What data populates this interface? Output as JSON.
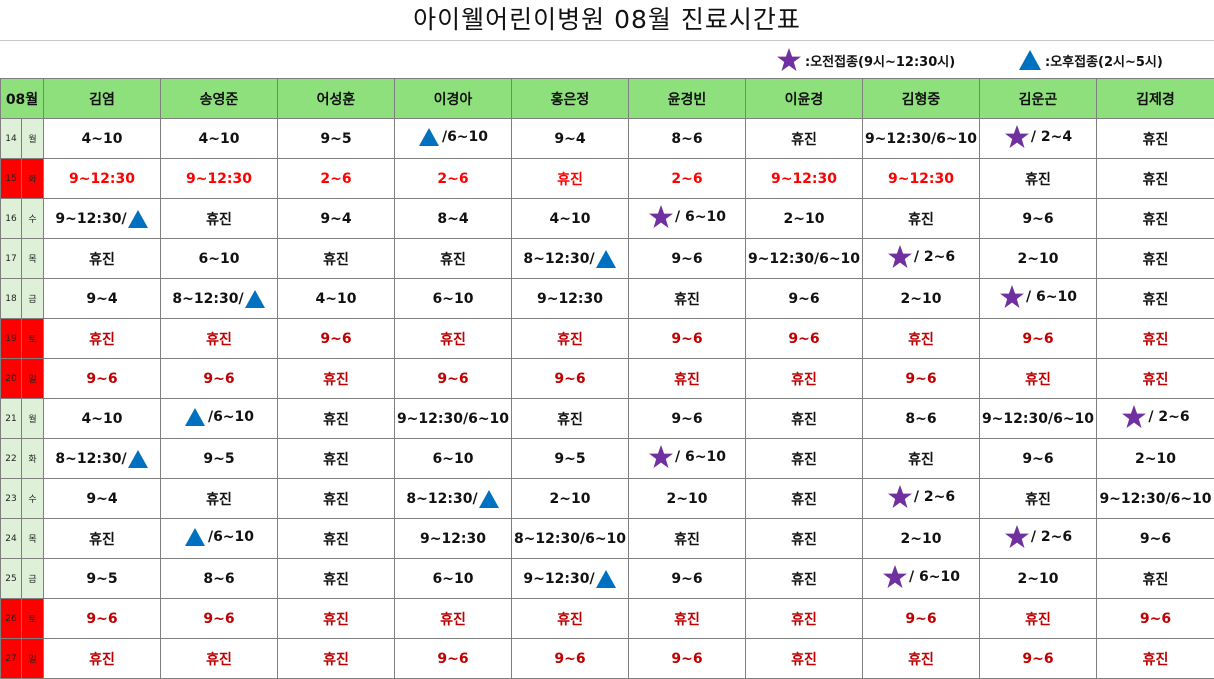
{
  "title": "아이웰어린이병원   08월   진료시간표",
  "legend": {
    "star_label": ":오전접종(9시~12:30시)",
    "triangle_label": ":오후접종(2시~5시)",
    "star_color": "#7030a0",
    "triangle_color": "#0070c0"
  },
  "header": {
    "month": "08월",
    "doctors": [
      "김염",
      "송영준",
      "어성훈",
      "이경아",
      "홍은정",
      "윤경빈",
      "이윤경",
      "김형중",
      "김운곤",
      "김제경"
    ]
  },
  "rows": [
    {
      "date": "14",
      "weekday": "월",
      "style": "normal",
      "cells": [
        {
          "text": "4~10"
        },
        {
          "text": "4~10"
        },
        {
          "text": "9~5"
        },
        {
          "text": "/6~10",
          "icon": "triangle",
          "pos": "before"
        },
        {
          "text": "9~4"
        },
        {
          "text": "8~6"
        },
        {
          "text": "휴진"
        },
        {
          "text": "9~12:30/6~10"
        },
        {
          "text": "/ 2~4",
          "icon": "star",
          "pos": "before"
        },
        {
          "text": "휴진"
        }
      ]
    },
    {
      "date": "15",
      "weekday": "화",
      "style": "red",
      "cells": [
        {
          "text": "9~12:30"
        },
        {
          "text": "9~12:30"
        },
        {
          "text": "2~6"
        },
        {
          "text": "2~6"
        },
        {
          "text": "휴진"
        },
        {
          "text": "2~6"
        },
        {
          "text": "9~12:30"
        },
        {
          "text": "9~12:30"
        },
        {
          "text": "휴진",
          "plain": true
        },
        {
          "text": "휴진",
          "plain": true
        }
      ]
    },
    {
      "date": "16",
      "weekday": "수",
      "style": "normal",
      "cells": [
        {
          "text": "9~12:30/",
          "icon": "triangle",
          "pos": "after"
        },
        {
          "text": "휴진"
        },
        {
          "text": "9~4"
        },
        {
          "text": "8~4"
        },
        {
          "text": "4~10"
        },
        {
          "text": "/ 6~10",
          "icon": "star",
          "pos": "before"
        },
        {
          "text": "2~10"
        },
        {
          "text": "휴진"
        },
        {
          "text": "9~6"
        },
        {
          "text": "휴진"
        }
      ]
    },
    {
      "date": "17",
      "weekday": "목",
      "style": "normal",
      "cells": [
        {
          "text": "휴진"
        },
        {
          "text": "6~10"
        },
        {
          "text": "휴진"
        },
        {
          "text": "휴진"
        },
        {
          "text": "8~12:30/",
          "icon": "triangle",
          "pos": "after"
        },
        {
          "text": "9~6"
        },
        {
          "text": "9~12:30/6~10"
        },
        {
          "text": "/ 2~6",
          "icon": "star",
          "pos": "before"
        },
        {
          "text": "2~10"
        },
        {
          "text": "휴진"
        }
      ]
    },
    {
      "date": "18",
      "weekday": "금",
      "style": "normal",
      "cells": [
        {
          "text": "9~4"
        },
        {
          "text": "8~12:30/",
          "icon": "triangle",
          "pos": "after"
        },
        {
          "text": "4~10"
        },
        {
          "text": "6~10"
        },
        {
          "text": "9~12:30"
        },
        {
          "text": "휴진"
        },
        {
          "text": "9~6"
        },
        {
          "text": "2~10"
        },
        {
          "text": "/ 6~10",
          "icon": "star",
          "pos": "before"
        },
        {
          "text": "휴진"
        }
      ]
    },
    {
      "date": "19",
      "weekday": "토",
      "style": "weekend",
      "cells": [
        {
          "text": "휴진"
        },
        {
          "text": "휴진"
        },
        {
          "text": "9~6"
        },
        {
          "text": "휴진"
        },
        {
          "text": "휴진"
        },
        {
          "text": "9~6"
        },
        {
          "text": "9~6"
        },
        {
          "text": "휴진"
        },
        {
          "text": "9~6"
        },
        {
          "text": "휴진"
        }
      ]
    },
    {
      "date": "20",
      "weekday": "일",
      "style": "weekend",
      "cells": [
        {
          "text": "9~6"
        },
        {
          "text": "9~6"
        },
        {
          "text": "휴진"
        },
        {
          "text": "9~6"
        },
        {
          "text": "9~6"
        },
        {
          "text": "휴진"
        },
        {
          "text": "휴진"
        },
        {
          "text": "9~6"
        },
        {
          "text": "휴진"
        },
        {
          "text": "휴진"
        }
      ]
    },
    {
      "date": "21",
      "weekday": "월",
      "style": "normal",
      "cells": [
        {
          "text": "4~10"
        },
        {
          "text": "/6~10",
          "icon": "triangle",
          "pos": "before"
        },
        {
          "text": "휴진"
        },
        {
          "text": "9~12:30/6~10"
        },
        {
          "text": "휴진"
        },
        {
          "text": "9~6"
        },
        {
          "text": "휴진"
        },
        {
          "text": "8~6"
        },
        {
          "text": "9~12:30/6~10"
        },
        {
          "text": "/ 2~6",
          "icon": "star",
          "pos": "before"
        }
      ]
    },
    {
      "date": "22",
      "weekday": "화",
      "style": "normal",
      "cells": [
        {
          "text": "8~12:30/",
          "icon": "triangle",
          "pos": "after"
        },
        {
          "text": "9~5"
        },
        {
          "text": "휴진"
        },
        {
          "text": "6~10"
        },
        {
          "text": "9~5"
        },
        {
          "text": "/ 6~10",
          "icon": "star",
          "pos": "before"
        },
        {
          "text": "휴진"
        },
        {
          "text": "휴진"
        },
        {
          "text": "9~6"
        },
        {
          "text": "2~10"
        }
      ]
    },
    {
      "date": "23",
      "weekday": "수",
      "style": "normal",
      "cells": [
        {
          "text": "9~4"
        },
        {
          "text": "휴진"
        },
        {
          "text": "휴진"
        },
        {
          "text": "8~12:30/",
          "icon": "triangle",
          "pos": "after"
        },
        {
          "text": "2~10"
        },
        {
          "text": "2~10"
        },
        {
          "text": "휴진"
        },
        {
          "text": "/ 2~6",
          "icon": "star",
          "pos": "before"
        },
        {
          "text": "휴진"
        },
        {
          "text": "9~12:30/6~10"
        }
      ]
    },
    {
      "date": "24",
      "weekday": "목",
      "style": "normal",
      "cells": [
        {
          "text": "휴진"
        },
        {
          "text": "/6~10",
          "icon": "triangle",
          "pos": "before"
        },
        {
          "text": "휴진"
        },
        {
          "text": "9~12:30"
        },
        {
          "text": "8~12:30/6~10"
        },
        {
          "text": "휴진"
        },
        {
          "text": "휴진"
        },
        {
          "text": "2~10"
        },
        {
          "text": "/ 2~6",
          "icon": "star",
          "pos": "before"
        },
        {
          "text": "9~6"
        }
      ]
    },
    {
      "date": "25",
      "weekday": "금",
      "style": "normal",
      "cells": [
        {
          "text": "9~5"
        },
        {
          "text": "8~6"
        },
        {
          "text": "휴진"
        },
        {
          "text": "6~10"
        },
        {
          "text": "9~12:30/",
          "icon": "triangle",
          "pos": "after"
        },
        {
          "text": "9~6"
        },
        {
          "text": "휴진"
        },
        {
          "text": "/ 6~10",
          "icon": "star",
          "pos": "before"
        },
        {
          "text": "2~10"
        },
        {
          "text": "휴진"
        }
      ]
    },
    {
      "date": "26",
      "weekday": "토",
      "style": "weekend",
      "cells": [
        {
          "text": "9~6"
        },
        {
          "text": "9~6"
        },
        {
          "text": "휴진"
        },
        {
          "text": "휴진"
        },
        {
          "text": "휴진"
        },
        {
          "text": "휴진"
        },
        {
          "text": "휴진"
        },
        {
          "text": "9~6"
        },
        {
          "text": "휴진"
        },
        {
          "text": "9~6"
        }
      ]
    },
    {
      "date": "27",
      "weekday": "일",
      "style": "weekend",
      "cells": [
        {
          "text": "휴진"
        },
        {
          "text": "휴진"
        },
        {
          "text": "휴진"
        },
        {
          "text": "9~6"
        },
        {
          "text": "9~6"
        },
        {
          "text": "9~6"
        },
        {
          "text": "휴진"
        },
        {
          "text": "휴진"
        },
        {
          "text": "9~6"
        },
        {
          "text": "휴진"
        }
      ]
    }
  ]
}
